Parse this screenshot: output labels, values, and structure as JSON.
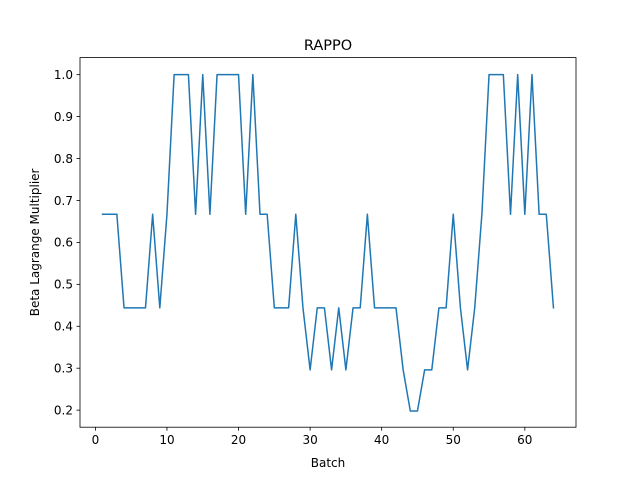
{
  "chart_data": {
    "type": "line",
    "title": "RAPPO",
    "xlabel": "Batch",
    "ylabel": "Beta Lagrange Multiplier",
    "xlim": [
      -2.15,
      67.15
    ],
    "ylim": [
      0.1593,
      1.0407
    ],
    "xticks": [
      0,
      10,
      20,
      30,
      40,
      50,
      60
    ],
    "xtick_labels": [
      "0",
      "10",
      "20",
      "30",
      "40",
      "50",
      "60"
    ],
    "yticks": [
      0.2,
      0.3,
      0.4,
      0.5,
      0.6,
      0.7,
      0.8,
      0.9,
      1.0
    ],
    "ytick_labels": [
      "0.2",
      "0.3",
      "0.4",
      "0.5",
      "0.6",
      "0.7",
      "0.8",
      "0.9",
      "1.0"
    ],
    "grid": false,
    "series": [
      {
        "color": "#1f77b4",
        "x": [
          1,
          2,
          3,
          4,
          5,
          6,
          7,
          8,
          9,
          10,
          11,
          12,
          13,
          14,
          15,
          16,
          17,
          18,
          19,
          20,
          21,
          22,
          23,
          24,
          25,
          26,
          27,
          28,
          29,
          30,
          31,
          32,
          33,
          34,
          35,
          36,
          37,
          38,
          39,
          40,
          41,
          42,
          43,
          44,
          45,
          46,
          47,
          48,
          49,
          50,
          51,
          52,
          53,
          54,
          55,
          56,
          57,
          58,
          59,
          60,
          61,
          62,
          63,
          64
        ],
        "y": [
          0.667,
          0.667,
          0.667,
          0.444,
          0.444,
          0.444,
          0.444,
          0.667,
          0.444,
          0.667,
          1.0,
          1.0,
          1.0,
          0.667,
          1.0,
          0.667,
          1.0,
          1.0,
          1.0,
          1.0,
          0.667,
          1.0,
          0.667,
          0.667,
          0.444,
          0.444,
          0.444,
          0.667,
          0.444,
          0.296,
          0.444,
          0.444,
          0.296,
          0.444,
          0.296,
          0.444,
          0.444,
          0.667,
          0.444,
          0.444,
          0.444,
          0.444,
          0.296,
          0.198,
          0.198,
          0.296,
          0.296,
          0.444,
          0.444,
          0.667,
          0.444,
          0.296,
          0.444,
          0.667,
          1.0,
          1.0,
          1.0,
          0.667,
          1.0,
          0.667,
          1.0,
          0.667,
          0.667,
          0.444
        ]
      }
    ]
  }
}
